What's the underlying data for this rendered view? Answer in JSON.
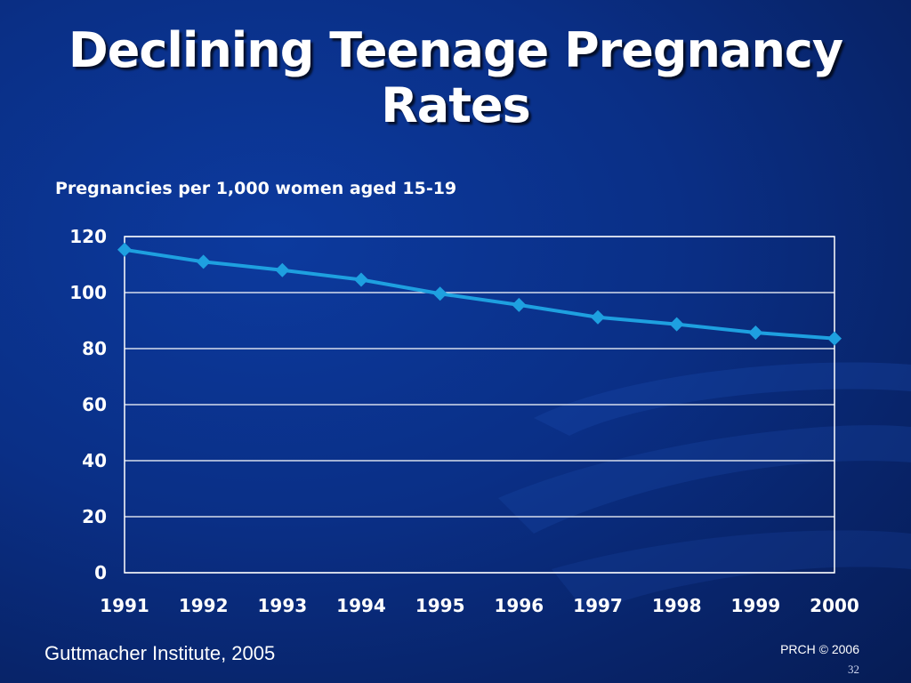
{
  "slide": {
    "title_line1": "Declining Teenage Pregnancy",
    "title_line2": "Rates",
    "source": "Guttmacher Institute, 2005",
    "copyright": "PRCH © 2006",
    "slide_number": "32"
  },
  "colors": {
    "line": "#1ea0e0",
    "marker": "#1ea0e0",
    "grid": "#ffffff",
    "background": "#0a2f86"
  },
  "chart_data": {
    "type": "line",
    "title": "Pregnancies per 1,000 women aged 15-19",
    "xlabel": "",
    "ylabel": "",
    "categories": [
      "1991",
      "1992",
      "1993",
      "1994",
      "1995",
      "1996",
      "1997",
      "1998",
      "1999",
      "2000"
    ],
    "series": [
      {
        "values": [
          115.3,
          111,
          108,
          104.6,
          99.6,
          95.6,
          91.2,
          88.7,
          85.7,
          83.6
        ]
      }
    ],
    "ylim": [
      0,
      120
    ],
    "yticks": [
      "0",
      "20",
      "40",
      "60",
      "80",
      "100",
      "120"
    ],
    "grid": true,
    "legend": "none"
  }
}
